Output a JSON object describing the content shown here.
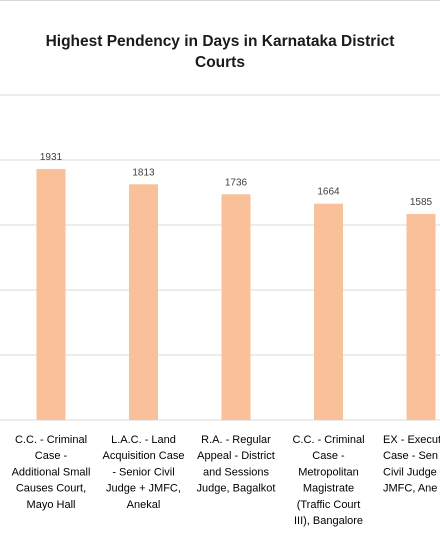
{
  "chart_data": {
    "type": "bar",
    "title_lines": [
      "Highest Pendency in Days in Karnataka District",
      "Courts"
    ],
    "xlabel": "",
    "ylabel": "",
    "categories": [
      [
        "C.C. - Criminal",
        "Case -",
        "Additional Small",
        "Causes Court,",
        "Mayo Hall"
      ],
      [
        "L.A.C. - Land",
        "Acquisition Case",
        "- Senior Civil",
        "Judge + JMFC,",
        "Anekal"
      ],
      [
        "R.A. - Regular",
        "Appeal - District",
        "and Sessions",
        "Judge, Bagalkot"
      ],
      [
        "C.C. - Criminal",
        "Case -",
        "Metropolitan",
        "Magistrate",
        "(Traffic Court",
        "III), Bangalore"
      ],
      [
        "EX - Executi",
        "Case - Sen",
        "Civil Judge",
        "JMFC, Ane"
      ]
    ],
    "values": [
      1931,
      1813,
      1736,
      1664,
      1585
    ],
    "data_labels": [
      "1931",
      "1813",
      "1736",
      "1664",
      "1585"
    ],
    "ylim": [
      0,
      2500
    ],
    "grid": true,
    "legend": "none",
    "bar_color": "#F8C19A",
    "grid_color": "#d9d9d9"
  }
}
